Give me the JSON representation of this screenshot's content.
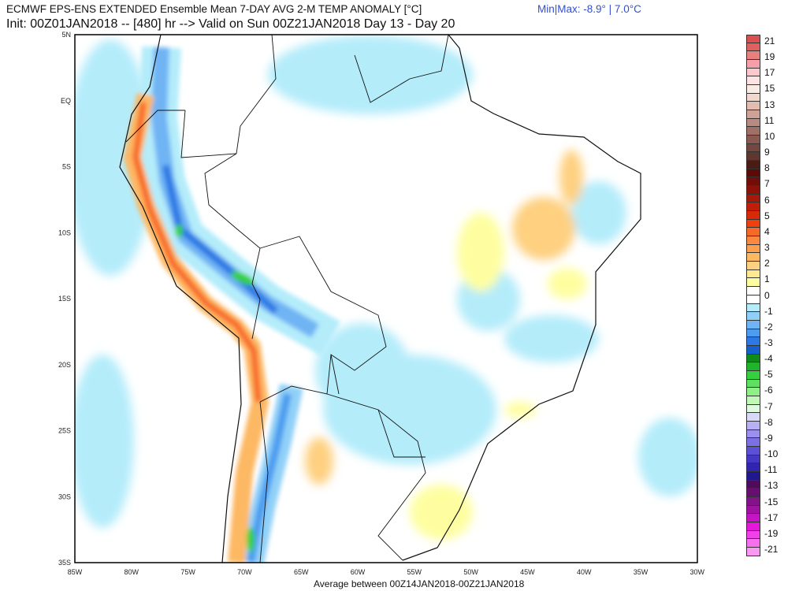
{
  "header": {
    "title": "ECMWF EPS-ENS EXTENDED Ensemble Mean 7-DAY AVG 2-M TEMP ANOMALY [°C]",
    "subtitle": "Init: 00Z01JAN2018 -- [480] hr --> Valid on Sun 00Z21JAN2018  Day 13 - Day 20",
    "minmax": "Min|Max: -8.9° | 7.0°C"
  },
  "footer": "Average between 00Z14JAN2018-00Z21JAN2018",
  "axes": {
    "lat_labels": [
      "5N",
      "EQ",
      "5S",
      "10S",
      "15S",
      "20S",
      "25S",
      "30S",
      "35S"
    ],
    "lon_labels": [
      "85W",
      "80W",
      "75W",
      "70W",
      "65W",
      "60W",
      "55W",
      "50W",
      "45W",
      "40W",
      "35W",
      "30W"
    ]
  },
  "colorbar": {
    "labels": [
      "21",
      "19",
      "17",
      "15",
      "13",
      "11",
      "10",
      "9",
      "8",
      "7",
      "6",
      "5",
      "4",
      "3",
      "2",
      "1",
      "0",
      "-1",
      "-2",
      "-3",
      "-4",
      "-5",
      "-6",
      "-7",
      "-8",
      "-9",
      "-10",
      "-11",
      "-13",
      "-15",
      "-17",
      "-19",
      "-21"
    ],
    "colors": [
      "#d9504f",
      "#e06060",
      "#e88080",
      "#f5a0a8",
      "#fbc8cc",
      "#fde3e3",
      "#f8ece4",
      "#f0d8cc",
      "#e2bcb0",
      "#cfa298",
      "#b88a80",
      "#a07068",
      "#8a5a50",
      "#744840",
      "#5e3830",
      "#4a1c14",
      "#5c0a08",
      "#720e0a",
      "#8c1208",
      "#a81808",
      "#c01e08",
      "#d82a08",
      "#f04010",
      "#f86828",
      "#fa8840",
      "#fca050",
      "#fdb864",
      "#fed080",
      "#fee890",
      "#fefea0",
      "#ffffff",
      "#ffffff",
      "#b4ecfa",
      "#90d0f8",
      "#70b4f4",
      "#4c9cf0",
      "#2c78e4",
      "#1460cc",
      "#108a18",
      "#20b42c",
      "#34d040",
      "#60e060",
      "#90f088",
      "#c0f8b8",
      "#e0fae0",
      "#d8d8f8",
      "#b8b0f4",
      "#9c90ee",
      "#7c70e4",
      "#5c50d4",
      "#4438c4",
      "#3024b0",
      "#201890",
      "#500c5c",
      "#64106c",
      "#801488",
      "#a012a0",
      "#c414c4",
      "#e418d8",
      "#f040e8",
      "#f670ee",
      "#fa98f2"
    ]
  }
}
